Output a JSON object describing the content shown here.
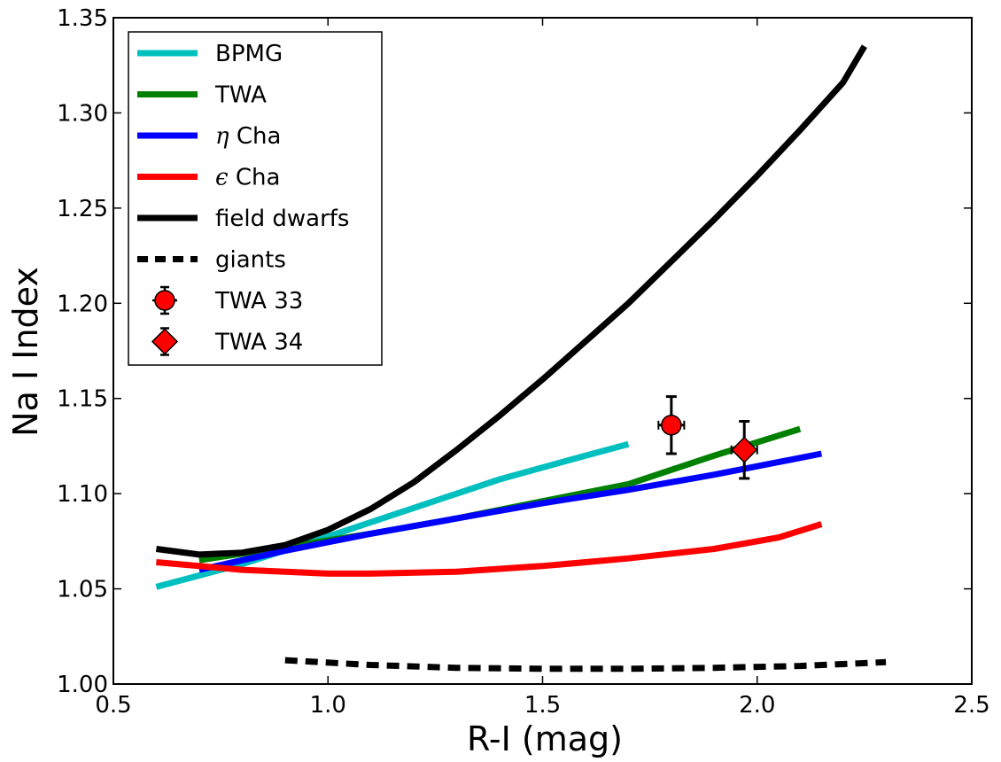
{
  "chart_data": {
    "type": "line",
    "title": "",
    "xlabel": "R-I (mag)",
    "ylabel": "Na I Index",
    "xlim": [
      0.5,
      2.5
    ],
    "ylim": [
      1.0,
      1.35
    ],
    "xticks": [
      "0.5",
      "1.0",
      "1.5",
      "2.0",
      "2.5"
    ],
    "yticks": [
      "1.00",
      "1.05",
      "1.10",
      "1.15",
      "1.20",
      "1.25",
      "1.30",
      "1.35"
    ],
    "grid": false,
    "legend_position": "top-left",
    "series": [
      {
        "name": "BPMG",
        "symbol": "",
        "rest": "BPMG",
        "color": "#00bfbf",
        "style": "solid",
        "points": [
          [
            0.6,
            1.051
          ],
          [
            0.8,
            1.063
          ],
          [
            1.0,
            1.0775
          ],
          [
            1.2,
            1.0925
          ],
          [
            1.4,
            1.1075
          ],
          [
            1.6,
            1.12
          ],
          [
            1.7,
            1.126
          ]
        ]
      },
      {
        "name": "TWA",
        "symbol": "",
        "rest": "TWA",
        "color": "#008000",
        "style": "solid",
        "points": [
          [
            0.7,
            1.065
          ],
          [
            0.9,
            1.072
          ],
          [
            1.1,
            1.079
          ],
          [
            1.3,
            1.087
          ],
          [
            1.5,
            1.096
          ],
          [
            1.7,
            1.105
          ],
          [
            1.9,
            1.12
          ],
          [
            2.1,
            1.134
          ]
        ]
      },
      {
        "name": "η Cha",
        "symbol": "η",
        "rest": " Cha",
        "color": "#0000ff",
        "style": "solid",
        "points": [
          [
            0.7,
            1.06
          ],
          [
            0.9,
            1.07
          ],
          [
            1.1,
            1.079
          ],
          [
            1.3,
            1.087
          ],
          [
            1.5,
            1.095
          ],
          [
            1.7,
            1.102
          ],
          [
            1.9,
            1.11
          ],
          [
            2.15,
            1.121
          ]
        ]
      },
      {
        "name": "ϵ Cha",
        "symbol": "ϵ",
        "rest": " Cha",
        "color": "#ff0000",
        "style": "solid",
        "points": [
          [
            0.6,
            1.064
          ],
          [
            0.8,
            1.06
          ],
          [
            1.0,
            1.058
          ],
          [
            1.1,
            1.058
          ],
          [
            1.3,
            1.059
          ],
          [
            1.5,
            1.062
          ],
          [
            1.7,
            1.066
          ],
          [
            1.9,
            1.071
          ],
          [
            2.05,
            1.077
          ],
          [
            2.15,
            1.084
          ]
        ]
      },
      {
        "name": "field dwarfs",
        "symbol": "",
        "rest": "field dwarfs",
        "color": "#000000",
        "style": "solid",
        "points": [
          [
            0.6,
            1.071
          ],
          [
            0.7,
            1.068
          ],
          [
            0.8,
            1.069
          ],
          [
            0.9,
            1.073
          ],
          [
            1.0,
            1.081
          ],
          [
            1.1,
            1.092
          ],
          [
            1.2,
            1.106
          ],
          [
            1.3,
            1.123
          ],
          [
            1.4,
            1.141
          ],
          [
            1.5,
            1.16
          ],
          [
            1.6,
            1.18
          ],
          [
            1.7,
            1.2
          ],
          [
            1.8,
            1.222
          ],
          [
            1.9,
            1.244
          ],
          [
            2.0,
            1.267
          ],
          [
            2.1,
            1.291
          ],
          [
            2.2,
            1.316
          ],
          [
            2.25,
            1.335
          ]
        ]
      },
      {
        "name": "giants",
        "symbol": "",
        "rest": "giants",
        "color": "#000000",
        "style": "dashed",
        "points": [
          [
            0.9,
            1.0125
          ],
          [
            1.1,
            1.01
          ],
          [
            1.3,
            1.0085
          ],
          [
            1.5,
            1.008
          ],
          [
            1.7,
            1.008
          ],
          [
            1.9,
            1.0085
          ],
          [
            2.1,
            1.0095
          ],
          [
            2.3,
            1.0115
          ]
        ]
      }
    ],
    "points": [
      {
        "name": "TWA 33",
        "marker": "circle",
        "color": "#ff0000",
        "x": 1.8,
        "y": 1.136,
        "xerr": 0.03,
        "yerr": 0.015
      },
      {
        "name": "TWA 34",
        "marker": "diamond",
        "color": "#ff0000",
        "x": 1.97,
        "y": 1.123,
        "xerr": 0.03,
        "yerr": 0.015
      }
    ]
  }
}
